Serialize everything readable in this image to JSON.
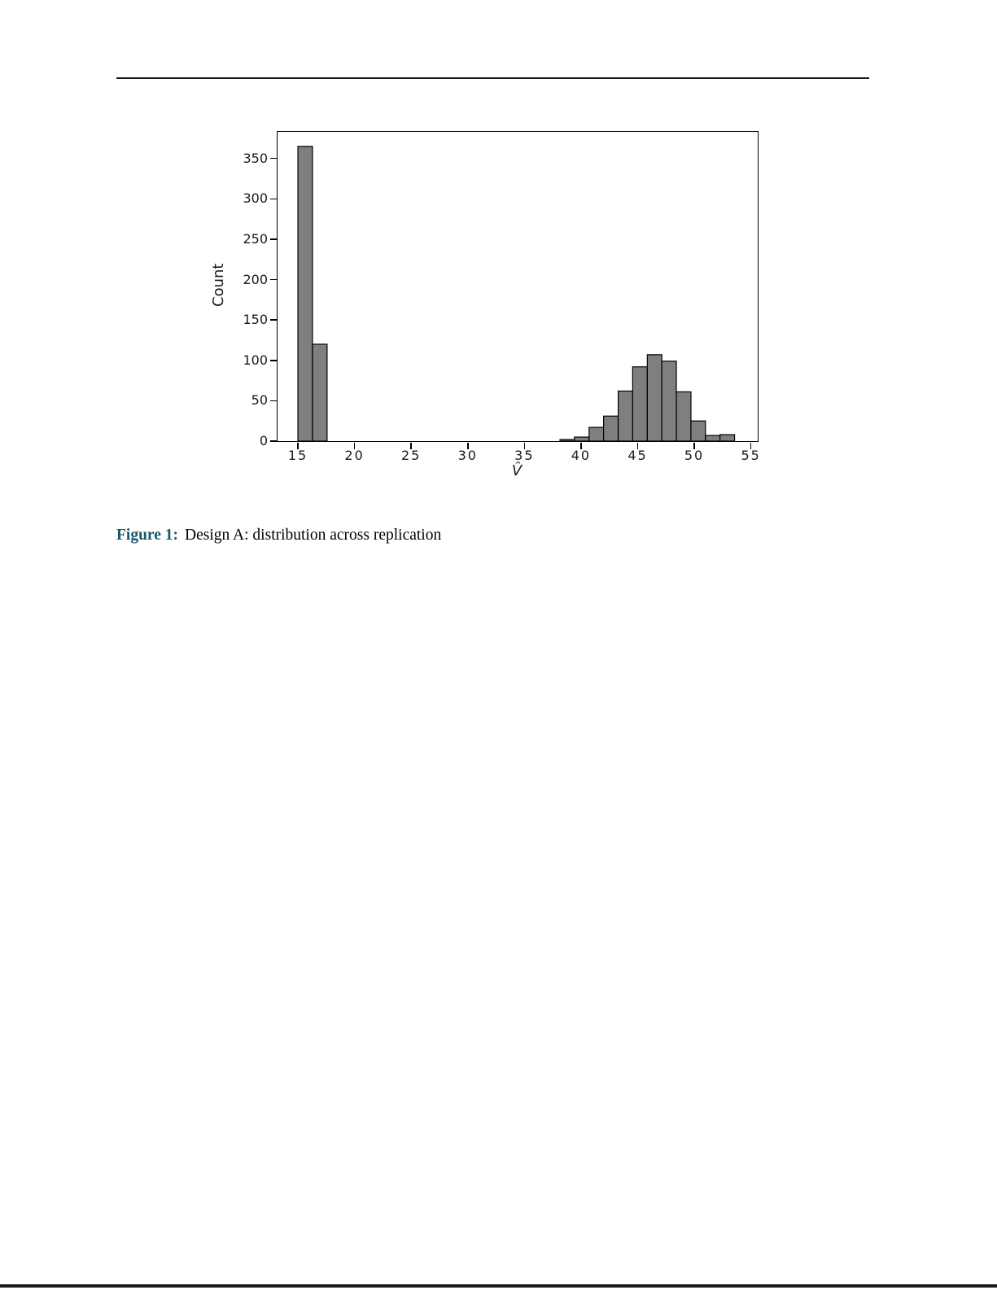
{
  "page": {
    "caption_label": "Figure 1:",
    "caption_text": "Design A: distribution across replication"
  },
  "chart_data": {
    "type": "bar",
    "title": "",
    "xlabel": "V̂",
    "ylabel": "Count",
    "xlim": [
      13.2,
      55.6
    ],
    "ylim": [
      0,
      383
    ],
    "x_ticks": [
      15,
      20,
      25,
      30,
      35,
      40,
      45,
      50,
      55
    ],
    "y_ticks": [
      0,
      50,
      100,
      150,
      200,
      250,
      300,
      350
    ],
    "grid": false,
    "legend": "none",
    "bin_width": 1.2855,
    "bar_color": "#7f7f7f",
    "bar_edge_color": "#000000",
    "bars": [
      {
        "x": 15.0,
        "count": 365
      },
      {
        "x": 16.29,
        "count": 120
      },
      {
        "x": 38.14,
        "count": 2
      },
      {
        "x": 39.42,
        "count": 5
      },
      {
        "x": 40.71,
        "count": 17
      },
      {
        "x": 41.99,
        "count": 31
      },
      {
        "x": 43.28,
        "count": 62
      },
      {
        "x": 44.56,
        "count": 92
      },
      {
        "x": 45.85,
        "count": 107
      },
      {
        "x": 47.13,
        "count": 99
      },
      {
        "x": 48.42,
        "count": 61
      },
      {
        "x": 49.7,
        "count": 25
      },
      {
        "x": 50.99,
        "count": 7
      },
      {
        "x": 52.27,
        "count": 8
      }
    ]
  }
}
